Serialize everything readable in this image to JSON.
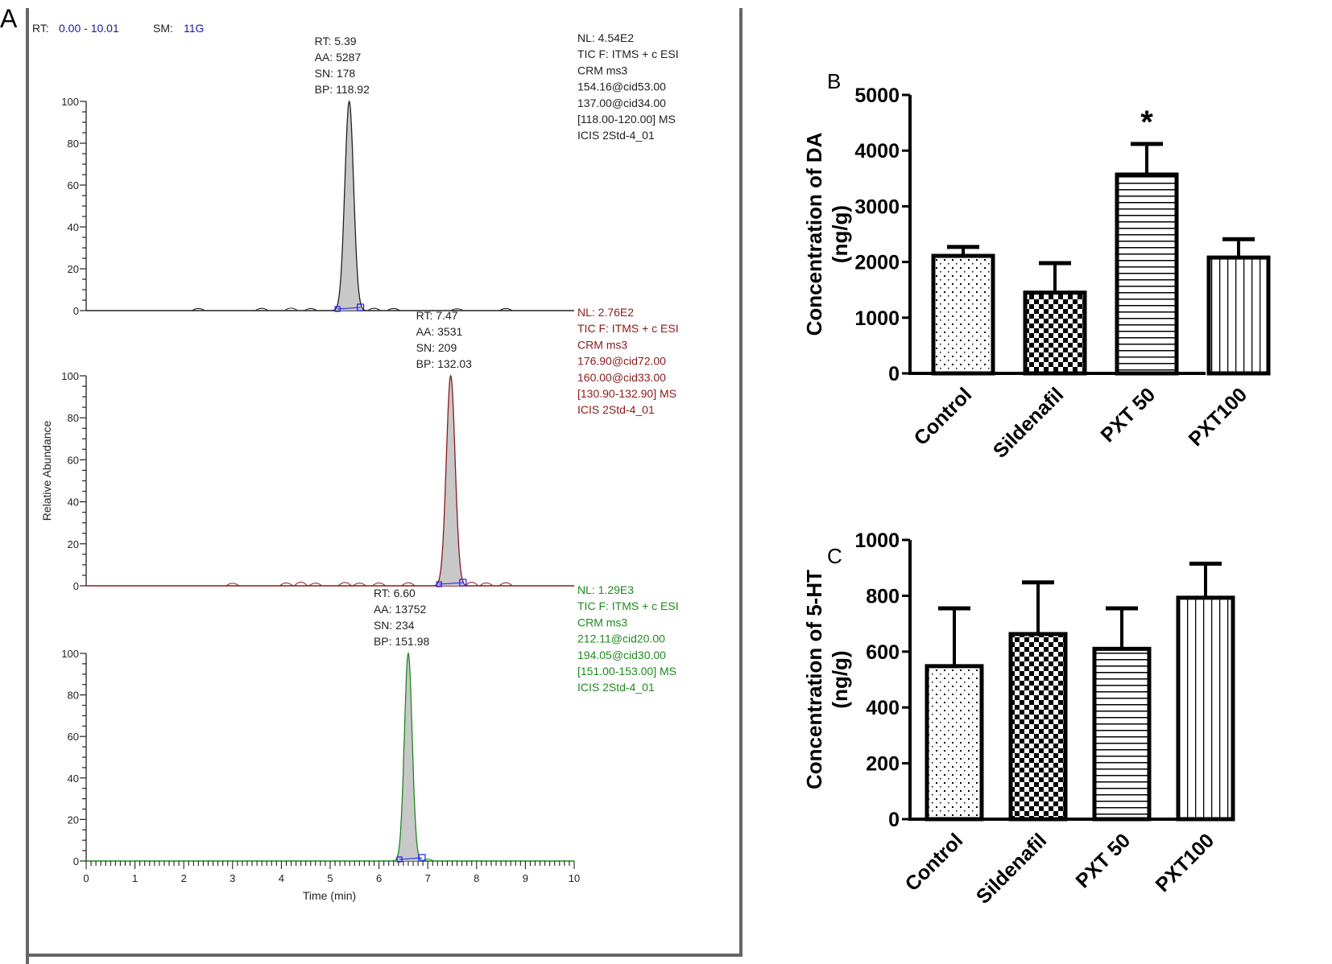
{
  "panel_labels": {
    "a": "A",
    "b": "B",
    "c": "C"
  },
  "colors": {
    "trace1": "#222222",
    "trace2": "#8b1a1a",
    "trace3": "#1e8a1e",
    "header_value": "#1a1aa0",
    "peak_fill": "#c8c8c8",
    "baseline_marker": "#1a1aff",
    "frame": "#555555"
  },
  "chart_data": [
    {
      "type": "line",
      "panel": "A",
      "header": {
        "rt_label": "RT:",
        "rt_range": "0.00 - 10.01",
        "sm_label": "SM:",
        "sm_value": "11G"
      },
      "xlabel": "Time (min)",
      "ylabel": "Relative Abundance",
      "xlim": [
        0,
        10
      ],
      "ylim": [
        0,
        100
      ],
      "x_ticks": [
        "0",
        "1",
        "2",
        "3",
        "4",
        "5",
        "6",
        "7",
        "8",
        "9",
        "10"
      ],
      "y_ticks": [
        "0",
        "20",
        "40",
        "60",
        "80",
        "100"
      ],
      "traces": [
        {
          "name": "trace-1",
          "color_key": "trace1",
          "peak_rt": 5.39,
          "peak_width": 0.09,
          "baseline_start": 5.15,
          "baseline_end": 5.62,
          "peak_label": [
            "RT: 5.39",
            "AA: 5287",
            "SN: 178",
            "BP: 118.92"
          ],
          "info": [
            "NL: 4.54E2",
            "TIC F: ITMS + c ESI",
            "CRM ms3",
            "154.16@cid53.00",
            "137.00@cid34.00",
            "[118.00-120.00]  MS",
            "ICIS 2Std-4_01"
          ],
          "noise": [
            [
              2.3,
              0.6
            ],
            [
              3.6,
              0.7
            ],
            [
              4.2,
              0.8
            ],
            [
              4.6,
              0.6
            ],
            [
              5.9,
              0.7
            ],
            [
              6.3,
              0.6
            ],
            [
              7.6,
              0.5
            ],
            [
              8.6,
              0.6
            ]
          ]
        },
        {
          "name": "trace-2",
          "color_key": "trace2",
          "peak_rt": 7.47,
          "peak_width": 0.09,
          "baseline_start": 7.23,
          "baseline_end": 7.72,
          "peak_label": [
            "RT: 7.47",
            "AA: 3531",
            "SN: 209",
            "BP: 132.03"
          ],
          "info": [
            "NL: 2.76E2",
            "TIC F: ITMS + c ESI",
            "CRM ms3",
            "176.90@cid72.00",
            "160.00@cid33.00",
            "[130.90-132.90]  MS",
            "ICIS 2Std-4_01"
          ],
          "noise": [
            [
              3.0,
              0.8
            ],
            [
              4.1,
              1.0
            ],
            [
              4.4,
              1.4
            ],
            [
              4.7,
              0.9
            ],
            [
              5.3,
              1.2
            ],
            [
              5.6,
              0.9
            ],
            [
              6.0,
              1.0
            ],
            [
              6.6,
              1.1
            ],
            [
              7.9,
              1.3
            ],
            [
              8.2,
              1.0
            ],
            [
              8.6,
              1.1
            ]
          ]
        },
        {
          "name": "trace-3",
          "color_key": "trace3",
          "peak_rt": 6.6,
          "peak_width": 0.08,
          "baseline_start": 6.42,
          "baseline_end": 6.88,
          "peak_label": [
            "RT: 6.60",
            "AA: 13752",
            "SN: 234",
            "BP: 151.98"
          ],
          "info": [
            "NL: 1.29E3",
            "TIC F: ITMS + c ESI",
            "CRM ms3",
            "212.11@cid20.00",
            "194.05@cid30.00",
            "[151.00-153.00]  MS",
            "ICIS 2Std-4_01"
          ],
          "noise": [
            [
              7.0,
              0.5
            ]
          ]
        }
      ]
    },
    {
      "type": "bar",
      "panel": "B",
      "title": "",
      "xlabel": "",
      "ylabel_line1": "Concentration of DA",
      "ylabel_line2": "(ng/g)",
      "ylim": [
        0,
        5000
      ],
      "y_ticks": [
        0,
        1000,
        2000,
        3000,
        4000,
        5000
      ],
      "categories": [
        "Control",
        "Sildenafil",
        "PXT 50",
        "PXT100"
      ],
      "patterns": [
        "dots",
        "checker",
        "hlines",
        "vlines"
      ],
      "values": [
        2110,
        1450,
        3570,
        2080
      ],
      "error_upper": [
        2270,
        1980,
        4120,
        2410
      ],
      "annotations": [
        {
          "category": "PXT 50",
          "text": "*"
        }
      ]
    },
    {
      "type": "bar",
      "panel": "C",
      "title": "",
      "xlabel": "",
      "ylabel_line1": "Concentration of 5-HT",
      "ylabel_line2": "(ng/g)",
      "ylim": [
        0,
        1000
      ],
      "y_ticks": [
        0,
        200,
        400,
        600,
        800,
        1000
      ],
      "categories": [
        "Control",
        "Sildenafil",
        "PXT 50",
        "PXT100"
      ],
      "patterns": [
        "dots",
        "checker",
        "hlines",
        "vlines"
      ],
      "values": [
        548,
        663,
        610,
        793
      ],
      "error_upper": [
        755,
        848,
        755,
        915
      ],
      "annotations": []
    }
  ]
}
